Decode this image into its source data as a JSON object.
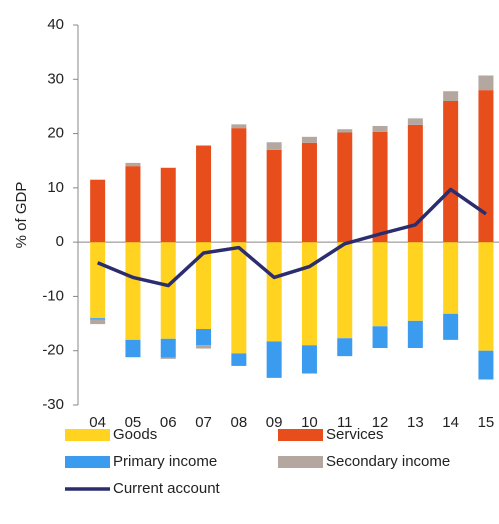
{
  "chart_data": {
    "type": "bar",
    "stacked": true,
    "y_label": "% of GDP",
    "categories": [
      "04",
      "05",
      "06",
      "07",
      "08",
      "09",
      "10",
      "11",
      "12",
      "13",
      "14",
      "15"
    ],
    "ylim": [
      -30,
      40
    ],
    "yticks": [
      -30,
      -20,
      -10,
      0,
      10,
      20,
      30,
      40
    ],
    "series": [
      {
        "name": "Goods",
        "color": "#ffd320",
        "values": [
          -14,
          -18,
          -17.8,
          -16,
          -20.5,
          -18.3,
          -19,
          -17.7,
          -15.5,
          -14.5,
          -13.2,
          -20
        ]
      },
      {
        "name": "Services",
        "color": "#e84e1b",
        "values": [
          11.5,
          14,
          13.7,
          17.8,
          21,
          17,
          18.3,
          20.2,
          20.3,
          21.6,
          26,
          28
        ]
      },
      {
        "name": "Primary income",
        "color": "#3a9bef",
        "values": [
          -0.3,
          -3.2,
          -3.5,
          -3,
          -2.3,
          -6.7,
          -5.2,
          -3.3,
          -4,
          -5,
          -4.8,
          -5.3
        ]
      },
      {
        "name": "Secondary income",
        "color": "#b3a7a0",
        "values": [
          -0.8,
          0.6,
          -0.2,
          -0.6,
          0.7,
          1.4,
          1.1,
          0.6,
          1.1,
          1.2,
          1.8,
          2.7
        ]
      },
      {
        "name": "Current account",
        "type": "line",
        "color": "#2b2d6e",
        "values": [
          -3.8,
          -6.5,
          -8,
          -2,
          -1,
          -6.5,
          -4.5,
          -0.3,
          1.5,
          3.2,
          9.7,
          5.2
        ]
      }
    ]
  }
}
